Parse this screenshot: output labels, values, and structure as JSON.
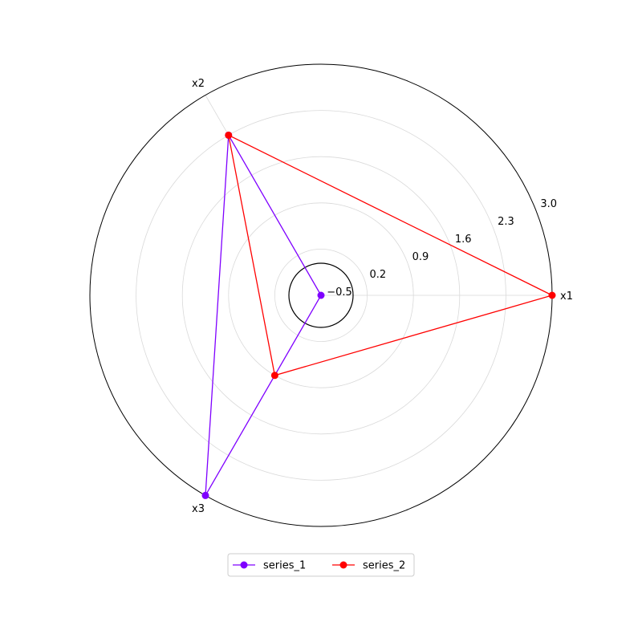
{
  "chart_data": {
    "type": "radar",
    "title": "",
    "categories": [
      "x1",
      "x2",
      "x3"
    ],
    "rlim": [
      -0.5,
      3.0
    ],
    "rticks": [
      -0.5,
      0.2,
      0.9,
      1.6,
      2.3,
      3.0
    ],
    "rtick_labels": [
      "−0.5",
      "0.2",
      "0.9",
      "1.6",
      "2.3",
      "3.0"
    ],
    "grid": true,
    "legend_position": "bottom-center",
    "series": [
      {
        "name": "series_1",
        "color": "#7f00ff",
        "values": [
          -0.5,
          2.3,
          3.0
        ]
      },
      {
        "name": "series_2",
        "color": "#ff0000",
        "values": [
          3.0,
          2.3,
          0.9
        ]
      }
    ]
  }
}
